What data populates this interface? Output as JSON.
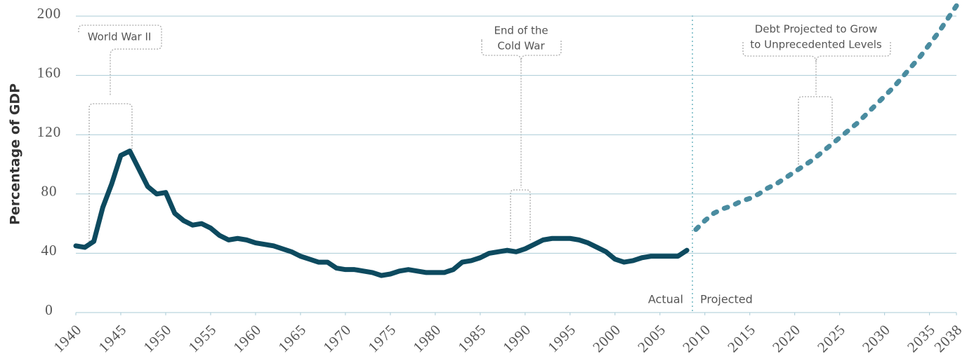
{
  "chart_data": {
    "type": "line",
    "ylabel": "Percentage of GDP",
    "xlim": [
      1940,
      2038
    ],
    "xticks": [
      1940,
      1945,
      1950,
      1955,
      1960,
      1965,
      1970,
      1975,
      1980,
      1985,
      1990,
      1995,
      2000,
      2005,
      2010,
      2015,
      2020,
      2025,
      2030,
      2035,
      2038
    ],
    "ylim": [
      0,
      200
    ],
    "yticks": [
      0,
      40,
      80,
      120,
      160,
      200
    ],
    "grid": true,
    "series": [
      {
        "name": "Actual",
        "color": "#0d4a5f",
        "style": "solid",
        "x": [
          1940,
          1941,
          1942,
          1943,
          1944,
          1945,
          1946,
          1947,
          1948,
          1949,
          1950,
          1951,
          1952,
          1953,
          1954,
          1955,
          1956,
          1957,
          1958,
          1959,
          1960,
          1961,
          1962,
          1963,
          1964,
          1965,
          1966,
          1967,
          1968,
          1969,
          1970,
          1971,
          1972,
          1973,
          1974,
          1975,
          1976,
          1977,
          1978,
          1979,
          1980,
          1981,
          1982,
          1983,
          1984,
          1985,
          1986,
          1987,
          1988,
          1989,
          1990,
          1991,
          1992,
          1993,
          1994,
          1995,
          1996,
          1997,
          1998,
          1999,
          2000,
          2001,
          2002,
          2003,
          2004,
          2005,
          2006,
          2007,
          2008
        ],
        "values": [
          45,
          44,
          48,
          71,
          87,
          106,
          109,
          97,
          85,
          80,
          81,
          67,
          62,
          59,
          60,
          57,
          52,
          49,
          50,
          49,
          47,
          46,
          45,
          43,
          41,
          38,
          36,
          34,
          34,
          30,
          29,
          29,
          28,
          27,
          25,
          26,
          28,
          29,
          28,
          27,
          27,
          27,
          29,
          34,
          35,
          37,
          40,
          41,
          42,
          41,
          43,
          46,
          49,
          50,
          50,
          50,
          49,
          47,
          44,
          41,
          36,
          34,
          35,
          37,
          38,
          38,
          38,
          38,
          42
        ]
      },
      {
        "name": "Projected",
        "color": "#4a8ca0",
        "style": "dashed",
        "x": [
          2009,
          2010,
          2011,
          2012,
          2013,
          2014,
          2015,
          2016,
          2017,
          2018,
          2019,
          2020,
          2021,
          2022,
          2023,
          2024,
          2025,
          2026,
          2027,
          2028,
          2029,
          2030,
          2031,
          2032,
          2033,
          2034,
          2035,
          2036,
          2037,
          2038
        ],
        "values": [
          56,
          62,
          67,
          70,
          72,
          75,
          77,
          80,
          84,
          87,
          91,
          95,
          99,
          103,
          108,
          113,
          118,
          123,
          128,
          134,
          140,
          146,
          152,
          159,
          166,
          173,
          181,
          189,
          198,
          207
        ]
      }
    ],
    "annotations": [
      {
        "lines": [
          "World War II"
        ]
      },
      {
        "lines": [
          "End of the",
          "Cold War"
        ]
      },
      {
        "lines": [
          "Debt Projected to Grow",
          "to Unprecedented Levels"
        ]
      }
    ]
  }
}
